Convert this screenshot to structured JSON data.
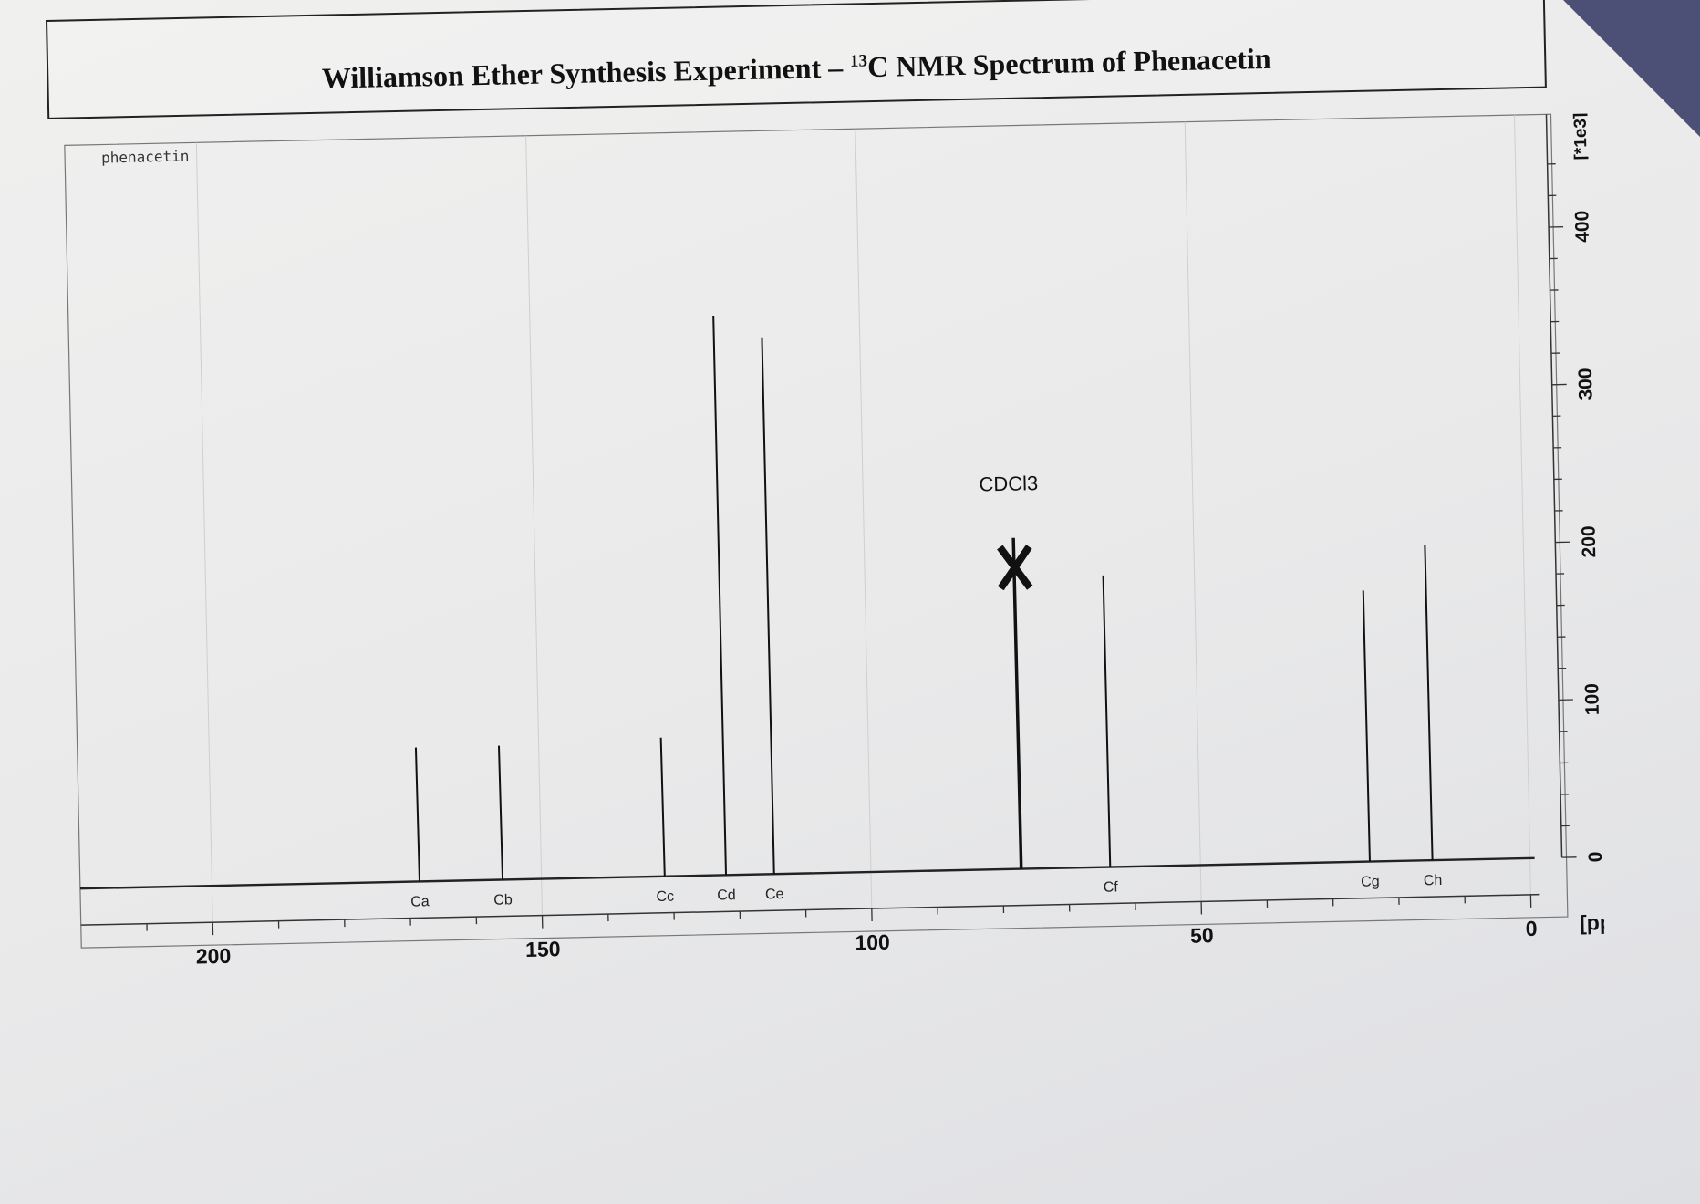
{
  "title_prefix": "Williamson Ether Synthesis Experiment – ",
  "title_sup": "13",
  "title_suffix": "C NMR Spectrum of Phenacetin",
  "chart_data": {
    "type": "line",
    "title": "Williamson Ether Synthesis Experiment – 13C NMR Spectrum of Phenacetin",
    "sample_label": "phenacetin",
    "x_unit": "[ppm]",
    "y_unit": "[*1e3]",
    "xlim": [
      220,
      0
    ],
    "ylim": [
      0,
      460
    ],
    "x_ticks": [
      200,
      150,
      100,
      50,
      0
    ],
    "y_ticks": [
      0,
      100,
      200,
      300,
      400
    ],
    "series": [
      {
        "peaks": [
          {
            "label": "Ca",
            "ppm": 168.5,
            "intensity": 85
          },
          {
            "label": "Cb",
            "ppm": 155.9,
            "intensity": 85
          },
          {
            "label": "Cc",
            "ppm": 131.3,
            "intensity": 88
          },
          {
            "label": "Cd",
            "ppm": 122.0,
            "intensity": 355
          },
          {
            "label": "Ce",
            "ppm": 114.7,
            "intensity": 340
          },
          {
            "label": "CDCl3",
            "ppm": 77.2,
            "intensity": 210,
            "struck": true
          },
          {
            "label": "Cf",
            "ppm": 63.7,
            "intensity": 185
          },
          {
            "label": "Cg",
            "ppm": 24.3,
            "intensity": 172
          },
          {
            "label": "Ch",
            "ppm": 14.8,
            "intensity": 200
          }
        ]
      }
    ]
  }
}
